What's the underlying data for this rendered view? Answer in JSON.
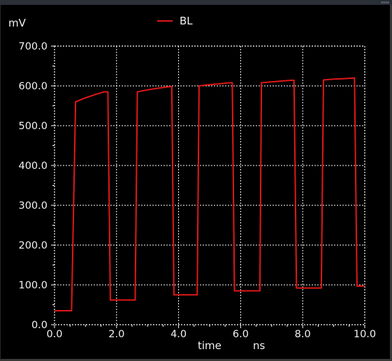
{
  "chart_data": {
    "type": "line",
    "y_unit": "mV",
    "xlabel": "time",
    "x_unit": "ns",
    "xlim": [
      0,
      10
    ],
    "ylim": [
      0,
      700
    ],
    "x_ticks": [
      "0.0",
      "2.0",
      "4.0",
      "6.0",
      "8.0",
      "10.0"
    ],
    "y_ticks": [
      "0.0",
      "100.0",
      "200.0",
      "300.0",
      "400.0",
      "500.0",
      "600.0",
      "700.0"
    ],
    "grid": true,
    "legend_position": "top-center",
    "series": [
      {
        "name": "BL",
        "color": "#e01818",
        "x": [
          0.0,
          0.55,
          0.68,
          1.0,
          1.3,
          1.6,
          1.72,
          1.8,
          2.6,
          2.67,
          3.0,
          3.4,
          3.7,
          3.78,
          3.85,
          4.6,
          4.66,
          5.0,
          5.3,
          5.65,
          5.73,
          5.8,
          6.62,
          6.67,
          7.0,
          7.3,
          7.63,
          7.72,
          7.8,
          8.6,
          8.67,
          9.0,
          9.3,
          9.67,
          9.75,
          10.0
        ],
        "y": [
          35,
          35,
          560,
          570,
          578,
          585,
          585,
          62,
          62,
          585,
          590,
          595,
          598,
          598,
          75,
          75,
          600,
          603,
          605,
          608,
          608,
          85,
          85,
          608,
          610,
          612,
          614,
          614,
          92,
          92,
          615,
          617,
          618,
          620,
          97,
          97
        ]
      }
    ]
  }
}
